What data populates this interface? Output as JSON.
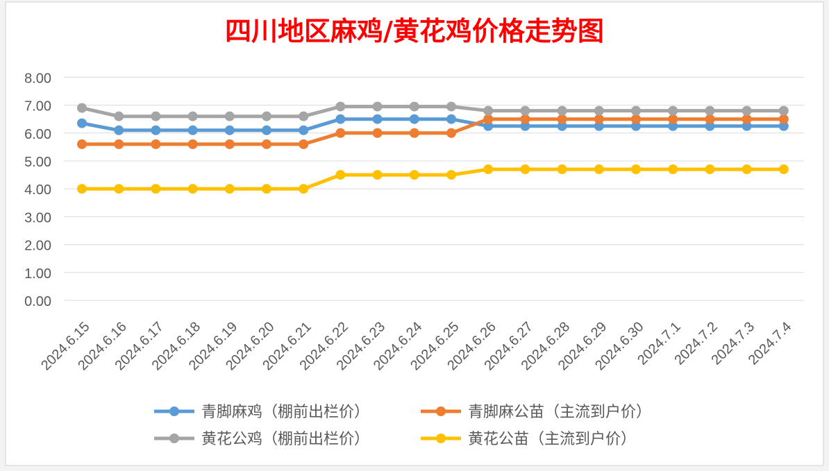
{
  "chart_data": {
    "type": "line",
    "title": "四川地区麻鸡/黄花鸡价格走势图",
    "xlabel": "",
    "ylabel": "",
    "ylim": [
      0,
      8
    ],
    "yticks": [
      "0.00",
      "1.00",
      "2.00",
      "3.00",
      "4.00",
      "5.00",
      "6.00",
      "7.00",
      "8.00"
    ],
    "grid": true,
    "legend_position": "bottom",
    "categories": [
      "2024.6.15",
      "2024.6.16",
      "2024.6.17",
      "2024.6.18",
      "2024.6.19",
      "2024.6.20",
      "2024.6.21",
      "2024.6.22",
      "2024.6.23",
      "2024.6.24",
      "2024.6.25",
      "2024.6.26",
      "2024.6.27",
      "2024.6.28",
      "2024.6.29",
      "2024.6.30",
      "2024.7.1",
      "2024.7.2",
      "2024.7.3",
      "2024.7.4"
    ],
    "series": [
      {
        "name": "青脚麻鸡（棚前出栏价）",
        "color": "#5b9bd5",
        "values": [
          6.35,
          6.1,
          6.1,
          6.1,
          6.1,
          6.1,
          6.1,
          6.5,
          6.5,
          6.5,
          6.5,
          6.25,
          6.25,
          6.25,
          6.25,
          6.25,
          6.25,
          6.25,
          6.25,
          6.25
        ]
      },
      {
        "name": "青脚麻公苗（主流到户价）",
        "color": "#ed7d31",
        "values": [
          5.6,
          5.6,
          5.6,
          5.6,
          5.6,
          5.6,
          5.6,
          6.0,
          6.0,
          6.0,
          6.0,
          6.5,
          6.5,
          6.5,
          6.5,
          6.5,
          6.5,
          6.5,
          6.5,
          6.5
        ]
      },
      {
        "name": "黄花公鸡（棚前出栏价）",
        "color": "#a5a5a5",
        "values": [
          6.9,
          6.6,
          6.6,
          6.6,
          6.6,
          6.6,
          6.6,
          6.95,
          6.95,
          6.95,
          6.95,
          6.8,
          6.8,
          6.8,
          6.8,
          6.8,
          6.8,
          6.8,
          6.8,
          6.8
        ]
      },
      {
        "name": "黄花公苗（主流到户价）",
        "color": "#ffc000",
        "values": [
          4.0,
          4.0,
          4.0,
          4.0,
          4.0,
          4.0,
          4.0,
          4.5,
          4.5,
          4.5,
          4.5,
          4.7,
          4.7,
          4.7,
          4.7,
          4.7,
          4.7,
          4.7,
          4.7,
          4.7
        ]
      }
    ]
  },
  "colors": {
    "title": "#ff0000",
    "background": "#ffffff",
    "grid": "#d9d9d9",
    "text": "#595959"
  }
}
